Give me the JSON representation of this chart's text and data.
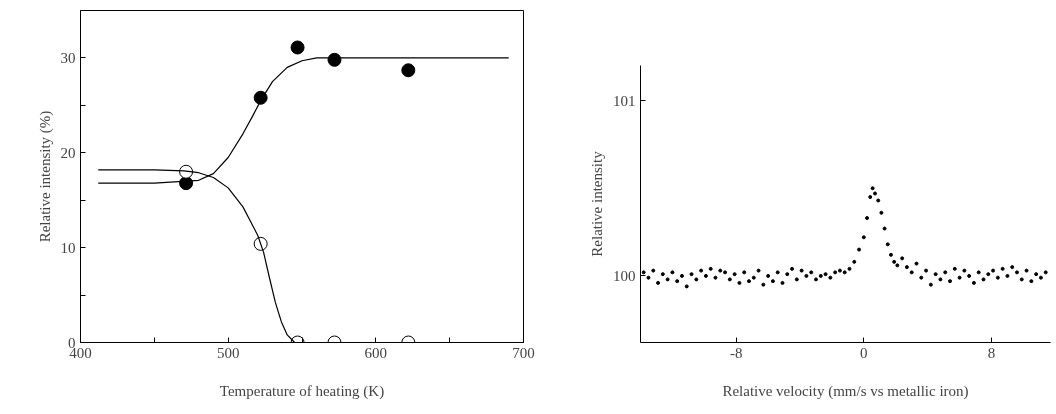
{
  "chart_data": [
    {
      "type": "scatter",
      "xlabel": "Temperature of heating (K)",
      "ylabel": "Relative intensity (%)",
      "xlim": [
        400,
        700
      ],
      "ylim": [
        0,
        35
      ],
      "xticks": [
        400,
        {
          "value": 450,
          "label": null
        },
        500,
        {
          "value": 550,
          "label": null
        },
        600,
        {
          "value": 650,
          "label": null
        },
        700
      ],
      "yticks": [
        0,
        {
          "value": 5,
          "label": null
        },
        10,
        {
          "value": 15,
          "label": null
        },
        20,
        {
          "value": 25,
          "label": null
        },
        30
      ],
      "grid": false,
      "series": [
        {
          "marker": "circle",
          "color": "#000000",
          "x": [
            471.5,
            522,
            547,
            572,
            622
          ],
          "values": [
            16.8,
            25.8,
            31.1,
            29.8,
            28.7
          ]
        },
        {
          "marker": "circle",
          "color": "#ffffff",
          "x": [
            471.5,
            522,
            547,
            572,
            622
          ],
          "values": [
            18.0,
            10.4,
            0,
            0,
            0
          ]
        },
        {
          "type": "line",
          "color": "#000000",
          "x": [
            412,
            450,
            480,
            490,
            500,
            510,
            517,
            522,
            530,
            540,
            550,
            560,
            570,
            600,
            650,
            690
          ],
          "values": [
            16.8,
            16.8,
            17.1,
            17.8,
            19.5,
            22,
            24,
            25.5,
            27.5,
            29.0,
            29.7,
            30,
            30,
            30,
            30,
            30
          ]
        },
        {
          "type": "line",
          "color": "#000000",
          "x": [
            412,
            450,
            470,
            480,
            490,
            500,
            510,
            515,
            520,
            524,
            528,
            532,
            536,
            540,
            545,
            560,
            600,
            650,
            690
          ],
          "values": [
            18.2,
            18.2,
            18.1,
            17.9,
            17.4,
            16.3,
            14.3,
            12.8,
            11.3,
            9.5,
            6.8,
            4.2,
            2.2,
            0.8,
            0,
            0,
            0,
            0,
            0
          ]
        }
      ]
    },
    {
      "type": "scatter",
      "xlabel": "Relative velocity (mm/s vs metallic iron)",
      "ylabel": "Relative intensity",
      "xlim": [
        -14,
        11.7
      ],
      "ylim": [
        99.62,
        101.2
      ],
      "xticks": [
        -8,
        0,
        8
      ],
      "yticks": [
        100,
        101
      ],
      "grid": false,
      "marker": "circle",
      "series": [
        {
          "color": "#000000",
          "x": [
            -13.8,
            -13.5,
            -13.2,
            -12.9,
            -12.6,
            -12.3,
            -12.0,
            -11.7,
            -11.4,
            -11.1,
            -10.8,
            -10.5,
            -10.2,
            -9.9,
            -9.6,
            -9.3,
            -9.0,
            -8.7,
            -8.4,
            -8.1,
            -7.8,
            -7.5,
            -7.2,
            -6.9,
            -6.6,
            -6.3,
            -6.0,
            -5.7,
            -5.4,
            -5.1,
            -4.8,
            -4.5,
            -4.2,
            -3.9,
            -3.6,
            -3.3,
            -3.0,
            -2.7,
            -2.4,
            -2.1,
            -1.8,
            -1.5,
            -1.2,
            -0.9,
            -0.6,
            -0.3,
            0.0,
            0.2,
            0.4,
            0.55,
            0.7,
            0.9,
            1.1,
            1.3,
            1.5,
            1.7,
            1.9,
            2.1,
            2.4,
            2.7,
            3.0,
            3.3,
            3.6,
            3.9,
            4.2,
            4.5,
            4.8,
            5.1,
            5.4,
            5.7,
            6.0,
            6.3,
            6.6,
            6.9,
            7.2,
            7.5,
            7.8,
            8.1,
            8.4,
            8.7,
            9.0,
            9.3,
            9.6,
            9.9,
            10.2,
            10.5,
            10.8,
            11.1,
            11.4
          ],
          "values": [
            100.02,
            99.99,
            100.03,
            99.96,
            100.01,
            99.98,
            100.02,
            99.97,
            100.0,
            99.94,
            100.01,
            99.98,
            100.03,
            100.0,
            100.04,
            99.99,
            100.03,
            100.02,
            99.98,
            100.01,
            99.96,
            100.02,
            99.97,
            99.99,
            100.03,
            99.95,
            100.0,
            99.97,
            100.02,
            99.96,
            100.01,
            100.04,
            99.98,
            100.03,
            100.0,
            100.02,
            99.98,
            100.0,
            100.01,
            99.99,
            100.02,
            100.03,
            100.02,
            100.04,
            100.08,
            100.15,
            100.22,
            100.33,
            100.45,
            100.5,
            100.47,
            100.43,
            100.36,
            100.27,
            100.18,
            100.12,
            100.08,
            100.06,
            100.1,
            100.05,
            100.02,
            100.07,
            99.99,
            100.03,
            99.95,
            100.01,
            99.98,
            100.02,
            99.97,
            100.04,
            99.99,
            100.03,
            100.0,
            99.96,
            100.02,
            99.98,
            100.01,
            100.03,
            99.99,
            100.04,
            100.0,
            100.05,
            100.02,
            99.98,
            100.03,
            99.97,
            100.01,
            99.99,
            100.02
          ]
        }
      ]
    }
  ]
}
